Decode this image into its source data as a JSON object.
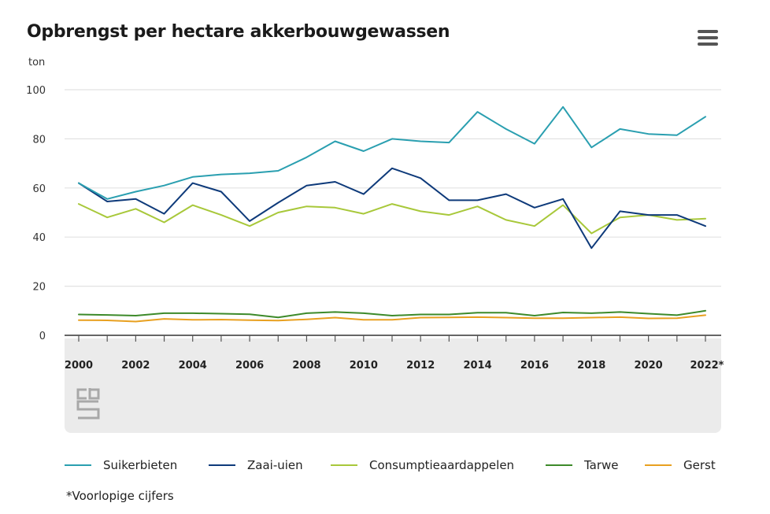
{
  "header": {
    "title": "Opbrengst per hectare akkerbouwgewassen",
    "menu_icon": "hamburger-menu-icon",
    "unit": "ton"
  },
  "footnote": "*Voorlopige cijfers",
  "logo": {
    "icon": "cbs-logo-icon",
    "text": "cbs"
  },
  "colors": {
    "Suikerbieten": "#2a9fb0",
    "Zaai-uien": "#0e3a7a",
    "Consumptieaardappelen": "#a8c83a",
    "Tarwe": "#3d8a2a",
    "Gerst": "#e8a020"
  },
  "chart_data": {
    "type": "line",
    "title": "Opbrengst per hectare akkerbouwgewassen",
    "ylabel": "ton",
    "xlabel": "",
    "ylim": [
      0,
      100
    ],
    "yticks": [
      0,
      20,
      40,
      60,
      80,
      100
    ],
    "x": [
      2000,
      2001,
      2002,
      2003,
      2004,
      2005,
      2006,
      2007,
      2008,
      2009,
      2010,
      2011,
      2012,
      2013,
      2014,
      2015,
      2016,
      2017,
      2018,
      2019,
      2020,
      2021,
      2022
    ],
    "xtick_labels": [
      "2000",
      "2002",
      "2004",
      "2006",
      "2008",
      "2010",
      "2012",
      "2014",
      "2016",
      "2018",
      "2020",
      "2022*"
    ],
    "xtick_years": [
      2000,
      2002,
      2004,
      2006,
      2008,
      2010,
      2012,
      2014,
      2016,
      2018,
      2020,
      2022
    ],
    "grid": true,
    "legend_position": "bottom",
    "series": [
      {
        "name": "Suikerbieten",
        "values": [
          62,
          55.5,
          58.5,
          61,
          64.5,
          65.5,
          66,
          67,
          72.5,
          79,
          75,
          80,
          79,
          78.5,
          91,
          84,
          78,
          93,
          76.5,
          84,
          82,
          81.5,
          89
        ]
      },
      {
        "name": "Zaai-uien",
        "values": [
          62,
          54.5,
          55.5,
          49.5,
          62,
          58.5,
          46.5,
          54,
          61,
          62.5,
          57.5,
          68,
          64,
          55,
          55,
          57.5,
          52,
          55.5,
          35.5,
          50.5,
          49,
          49,
          44.5
        ]
      },
      {
        "name": "Consumptieaardappelen",
        "values": [
          53.5,
          48,
          51.5,
          46,
          53,
          49,
          44.5,
          50,
          52.5,
          52,
          49.5,
          53.5,
          50.5,
          49,
          52.5,
          47,
          44.5,
          53,
          41.5,
          48,
          49,
          47,
          47.5
        ]
      },
      {
        "name": "Tarwe",
        "values": [
          8.5,
          8.3,
          8,
          9,
          9,
          8.8,
          8.6,
          7.3,
          9,
          9.5,
          9,
          8,
          8.5,
          8.5,
          9.2,
          9.2,
          8,
          9.3,
          9,
          9.5,
          8.8,
          8.2,
          10
        ]
      },
      {
        "name": "Gerst",
        "values": [
          6.2,
          6.1,
          5.6,
          6.7,
          6.3,
          6.4,
          6.2,
          6,
          6.5,
          7.2,
          6.3,
          6.3,
          7.2,
          7.3,
          7.4,
          7.2,
          7,
          7,
          7.2,
          7.4,
          6.9,
          7,
          8.2
        ]
      }
    ]
  }
}
